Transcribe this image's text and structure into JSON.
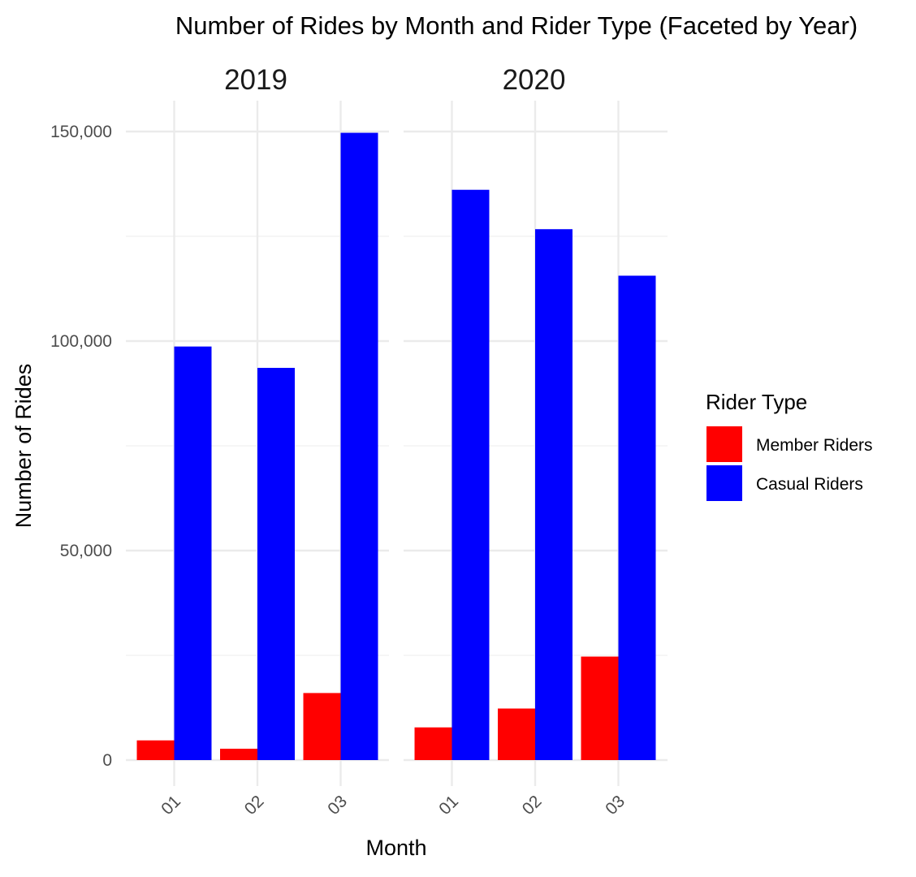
{
  "chart_data": {
    "type": "bar",
    "title": "Number of Rides by Month and Rider Type (Faceted by Year)",
    "xlabel": "Month",
    "ylabel": "Number of Rides",
    "ylim": [
      0,
      157000
    ],
    "y_ticks": [
      0,
      50000,
      100000,
      150000
    ],
    "y_tick_labels": [
      "0",
      "50,000",
      "100,000",
      "150,000"
    ],
    "grid": true,
    "legend": {
      "title": "Rider Type",
      "placement": "right",
      "entries": [
        "Member Riders",
        "Casual Riders"
      ]
    },
    "categories": [
      "01",
      "02",
      "03"
    ],
    "facets": [
      {
        "label": "2019",
        "series": [
          {
            "name": "Member Riders",
            "values": [
              4700,
              2700,
              16000
            ]
          },
          {
            "name": "Casual Riders",
            "values": [
              98700,
              93600,
              149700
            ]
          }
        ]
      },
      {
        "label": "2020",
        "series": [
          {
            "name": "Member Riders",
            "values": [
              7800,
              12300,
              24700
            ]
          },
          {
            "name": "Casual Riders",
            "values": [
              136100,
              126700,
              115600
            ]
          }
        ]
      }
    ],
    "colors": {
      "Member Riders": "#ff0000",
      "Casual Riders": "#0000ff"
    }
  }
}
